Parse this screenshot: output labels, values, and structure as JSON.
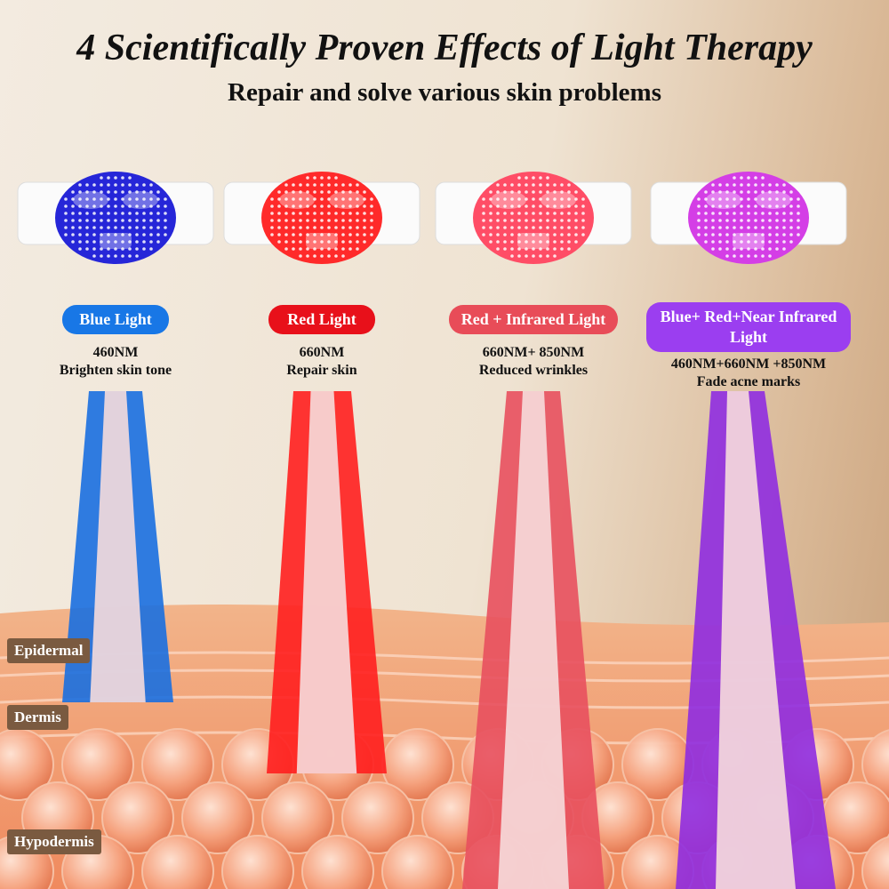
{
  "header": {
    "title": "4 Scientifically Proven Effects of Light Therapy",
    "subtitle": "Repair and solve various skin problems"
  },
  "panels": [
    {
      "label": "Blue Light",
      "wavelength": "460NM",
      "effect": "Brighten skin tone"
    },
    {
      "label": "Red Light",
      "wavelength": "660NM",
      "effect": "Repair skin"
    },
    {
      "label": "Red + Infrared Light",
      "wavelength": "660NM+ 850NM",
      "effect": "Reduced wrinkles"
    },
    {
      "label": "Blue+ Red+Near Infrared Light",
      "wavelength": "460NM+660NM +850NM",
      "effect": "Fade acne marks"
    }
  ],
  "layers": [
    "Epidermal",
    "Dermis",
    "Hypodermis"
  ]
}
